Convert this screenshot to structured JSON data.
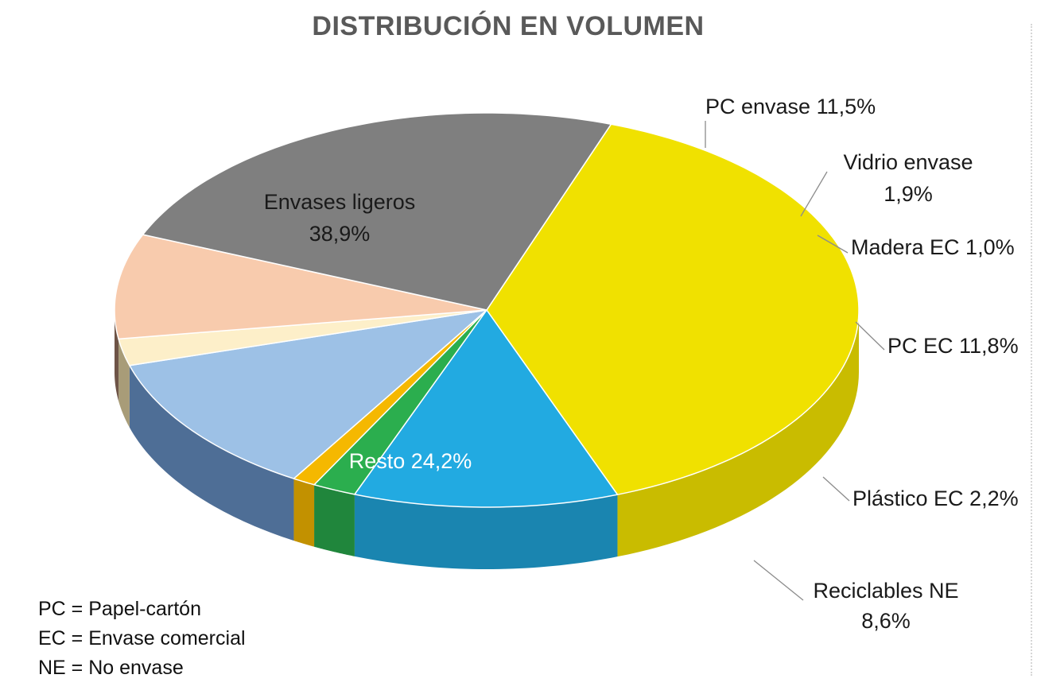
{
  "chart_data": {
    "type": "pie",
    "title": "DISTRIBUCIÓN EN  VOLUMEN",
    "slices": [
      {
        "name": "Envases ligeros",
        "value": 38.9,
        "label": [
          "Envases ligeros",
          "38,9%"
        ],
        "color": "#F0E100",
        "side": "#C9BC00",
        "label_pos": "inside"
      },
      {
        "name": "PC envase",
        "value": 11.5,
        "label": [
          "PC  envase 11,5%"
        ],
        "color": "#22AAE1",
        "side": "#1A85B0",
        "label_pos": "outside"
      },
      {
        "name": "Vidrio envase",
        "value": 1.9,
        "label": [
          "Vidrio envase",
          "1,9%"
        ],
        "color": "#2BAE4E",
        "side": "#20863C",
        "label_pos": "outside"
      },
      {
        "name": "Madera EC",
        "value": 1.0,
        "label": [
          "Madera EC 1,0%"
        ],
        "color": "#F5B800",
        "side": "#C29100",
        "label_pos": "outside"
      },
      {
        "name": "PC EC",
        "value": 11.8,
        "label": [
          "PC EC 11,8%"
        ],
        "color": "#9DC1E6",
        "side": "#4E6E96",
        "label_pos": "outside"
      },
      {
        "name": "Plástico EC",
        "value": 2.2,
        "label": [
          "Plástico EC 2,2%"
        ],
        "color": "#FDEFC9",
        "side": "#A89C78",
        "label_pos": "outside"
      },
      {
        "name": "Reciclables NE",
        "value": 8.6,
        "label": [
          "Reciclables NE",
          "8,6%"
        ],
        "color": "#F8CBAD",
        "side": "#6E5447",
        "label_pos": "outside"
      },
      {
        "name": "Resto",
        "value": 24.2,
        "label": [
          "Resto 24,2%"
        ],
        "color": "#7F7F7F",
        "side": "#3E3E3E",
        "label_pos": "inside"
      }
    ],
    "legend_notes": [
      "PC = Papel-cartón",
      "EC = Envase comercial",
      "NE = No envase"
    ],
    "style": "3d-pie"
  }
}
